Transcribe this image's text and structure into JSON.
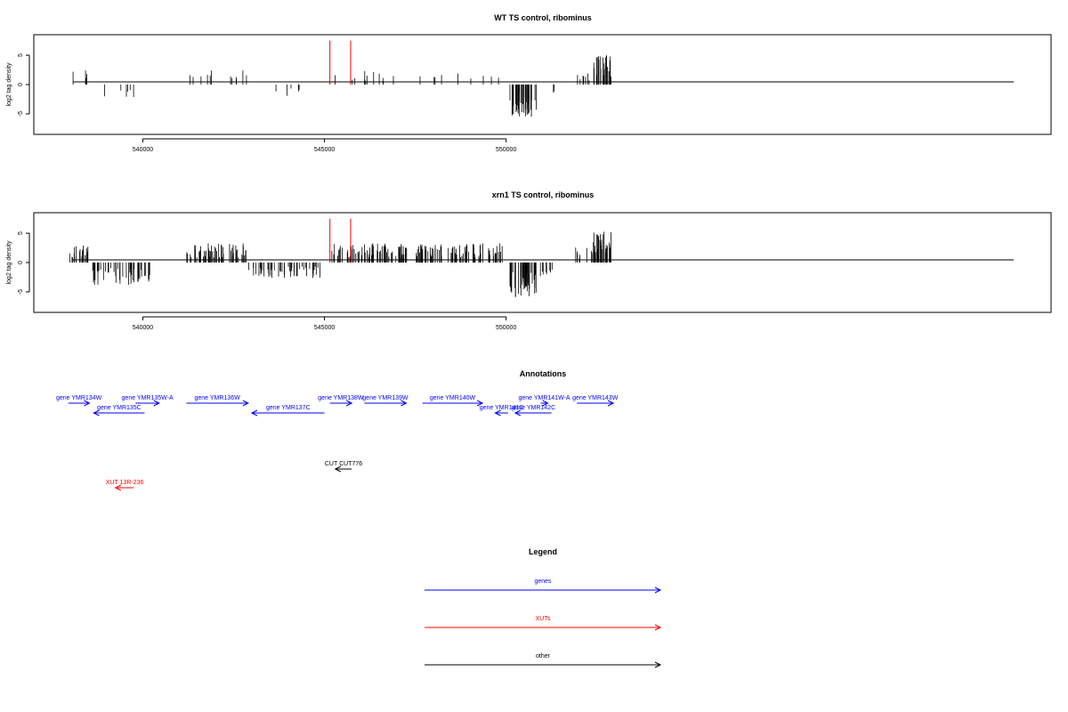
{
  "chart_data": [
    {
      "type": "bar",
      "title": "WT TS control, ribominus",
      "xlabel": "",
      "ylabel": "log2 tag density",
      "xlim": [
        537000,
        565000
      ],
      "ylim": [
        -8.5,
        8.5
      ],
      "x_ticks": [
        540000,
        545000,
        550000
      ],
      "x_tick_labels": [
        "540000",
        "545000",
        "550000"
      ],
      "y_ticks": [
        5,
        0,
        -5
      ],
      "y_tick_labels": [
        "5",
        "0",
        "-5"
      ],
      "series": [
        {
          "color": "#000000",
          "segments": [
            {
              "start": 537950,
              "end": 538700,
              "level": 2.0,
              "density": 0.012
            },
            {
              "start": 538700,
              "end": 539900,
              "level": -2.0,
              "density": 0.01
            },
            {
              "start": 541100,
              "end": 542900,
              "level": 2.2,
              "density": 0.014
            },
            {
              "start": 542900,
              "end": 544900,
              "level": -1.8,
              "density": 0.006
            },
            {
              "start": 545250,
              "end": 547300,
              "level": 2.0,
              "density": 0.012
            },
            {
              "start": 547600,
              "end": 549800,
              "level": 1.6,
              "density": 0.008
            },
            {
              "start": 550100,
              "end": 550850,
              "level": -4.6,
              "density": 0.12
            },
            {
              "start": 550850,
              "end": 551500,
              "level": -1.5,
              "density": 0.006
            },
            {
              "start": 551900,
              "end": 552400,
              "level": 2.2,
              "density": 0.03
            },
            {
              "start": 552400,
              "end": 552900,
              "level": 4.2,
              "density": 0.1
            }
          ]
        },
        {
          "color": "#ff0000",
          "bars": [
            [
              545150,
              7.5
            ],
            [
              545720,
              7.5
            ]
          ]
        }
      ],
      "grid": false,
      "legend": "none"
    },
    {
      "type": "bar",
      "title": "xrn1 TS control, ribominus",
      "xlabel": "",
      "ylabel": "log2 tag density",
      "xlim": [
        537000,
        565000
      ],
      "ylim": [
        -8.5,
        8.5
      ],
      "x_ticks": [
        540000,
        545000,
        550000
      ],
      "x_tick_labels": [
        "540000",
        "545000",
        "550000"
      ],
      "y_ticks": [
        5,
        0,
        -5
      ],
      "y_tick_labels": [
        "5",
        "0",
        "-5"
      ],
      "series": [
        {
          "color": "#000000",
          "segments": [
            {
              "start": 537950,
              "end": 538600,
              "level": 2.6,
              "density": 0.06
            },
            {
              "start": 538600,
              "end": 540200,
              "level": -3.2,
              "density": 0.06
            },
            {
              "start": 541200,
              "end": 542900,
              "level": 2.8,
              "density": 0.07
            },
            {
              "start": 542900,
              "end": 544900,
              "level": -2.2,
              "density": 0.05
            },
            {
              "start": 545200,
              "end": 547300,
              "level": 2.8,
              "density": 0.07
            },
            {
              "start": 547500,
              "end": 549900,
              "level": 2.8,
              "density": 0.07
            },
            {
              "start": 550100,
              "end": 550850,
              "level": -5.0,
              "density": 0.12
            },
            {
              "start": 550850,
              "end": 551300,
              "level": -2.0,
              "density": 0.04
            },
            {
              "start": 551900,
              "end": 552400,
              "level": 2.4,
              "density": 0.04
            },
            {
              "start": 552400,
              "end": 552900,
              "level": 4.5,
              "density": 0.12
            }
          ]
        },
        {
          "color": "#ff0000",
          "bars": [
            [
              545150,
              7.5
            ],
            [
              545720,
              7.5
            ]
          ]
        }
      ],
      "grid": false,
      "legend": "none"
    }
  ],
  "annotations": {
    "title": "Annotations",
    "items": [
      {
        "label": "gene YMR134W",
        "start": 537950,
        "end": 538530,
        "strand": "+",
        "row": 1,
        "color": "#0000ff"
      },
      {
        "label": "gene YMR135C",
        "start": 538650,
        "end": 540050,
        "strand": "-",
        "row": 2,
        "color": "#0000ff"
      },
      {
        "label": "gene YMR135W-A",
        "start": 539800,
        "end": 540450,
        "strand": "+",
        "row": 1,
        "color": "#0000ff"
      },
      {
        "label": "gene YMR136W",
        "start": 541200,
        "end": 542900,
        "strand": "+",
        "row": 1,
        "color": "#0000ff"
      },
      {
        "label": "gene YMR137C",
        "start": 543000,
        "end": 545000,
        "strand": "-",
        "row": 2,
        "color": "#0000ff"
      },
      {
        "label": "gene YMR138W",
        "start": 545150,
        "end": 545750,
        "strand": "+",
        "row": 1,
        "color": "#0000ff"
      },
      {
        "label": "gene YMR139W",
        "start": 546100,
        "end": 547250,
        "strand": "+",
        "row": 1,
        "color": "#0000ff"
      },
      {
        "label": "gene YMR140W",
        "start": 547700,
        "end": 549350,
        "strand": "+",
        "row": 1,
        "color": "#0000ff"
      },
      {
        "label": "gene YMR141C",
        "start": 549700,
        "end": 550050,
        "strand": "-",
        "row": 2,
        "color": "#0000ff"
      },
      {
        "label": "gene YMR142C",
        "start": 550250,
        "end": 551250,
        "strand": "-",
        "row": 2,
        "color": "#0000ff"
      },
      {
        "label": "gene YMR141W-A",
        "start": 550950,
        "end": 551150,
        "strand": "+",
        "row": 1,
        "color": "#0000ff"
      },
      {
        "label": "gene YMR143W",
        "start": 551950,
        "end": 552950,
        "strand": "+",
        "row": 1,
        "color": "#0000ff"
      },
      {
        "label": "CUT CUT776",
        "start": 545300,
        "end": 545750,
        "strand": "-",
        "row": 4,
        "color": "#000000"
      },
      {
        "label": "XUT 13R-236",
        "start": 539250,
        "end": 539750,
        "strand": "-",
        "row": 5,
        "color": "#ff0000"
      }
    ]
  },
  "legend": {
    "title": "Legend",
    "items": [
      {
        "label": "genes",
        "color": "#0000ff"
      },
      {
        "label": "XUTs",
        "color": "#ff0000"
      },
      {
        "label": "other",
        "color": "#000000"
      }
    ]
  }
}
